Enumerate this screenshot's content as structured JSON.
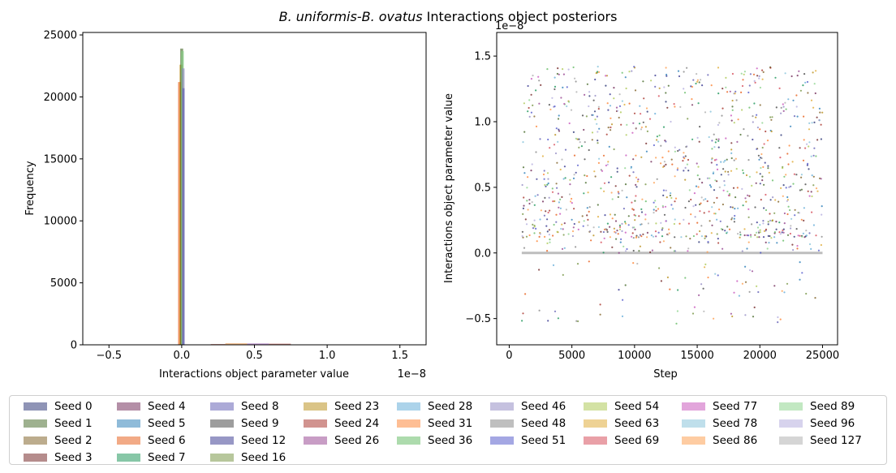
{
  "figure": {
    "title_italic": "B. uniformis-B. ovatus",
    "title_rest": " Interactions object posteriors"
  },
  "chart_data": [
    {
      "type": "histogram",
      "xlabel": "Interactions object parameter value",
      "ylabel": "Frequency",
      "x_offset_label": "1e−8",
      "xlim": [
        -0.68,
        1.68
      ],
      "ylim": [
        0,
        25200
      ],
      "x_units": "1e-8",
      "xticks": [
        -0.5,
        0.0,
        0.5,
        1.0,
        1.5
      ],
      "xtick_labels": [
        "−0.5",
        "0.0",
        "0.5",
        "1.0",
        "1.5"
      ],
      "yticks": [
        0,
        5000,
        10000,
        15000,
        20000,
        25000
      ],
      "ytick_labels": [
        "0",
        "5000",
        "10000",
        "15000",
        "20000",
        "25000"
      ],
      "spike_bars": [
        {
          "x0": -0.025,
          "x1": -0.005,
          "height": 21200,
          "series": "Seed 6"
        },
        {
          "x0": -0.015,
          "x1": 0.005,
          "height": 22600,
          "series": "Seed 23"
        },
        {
          "x0": -0.01,
          "x1": 0.01,
          "height": 23900,
          "series": "Seed 1"
        },
        {
          "x0": -0.005,
          "x1": 0.015,
          "height": 23700,
          "series": "Seed 89"
        },
        {
          "x0": 0.0,
          "x1": 0.02,
          "height": 22300,
          "series": "Seed 46"
        },
        {
          "x0": 0.005,
          "x1": 0.02,
          "height": 20700,
          "series": "Seed 8"
        }
      ],
      "tail_bars": [
        {
          "x0": 0.2,
          "x1": 0.3,
          "height": 60
        },
        {
          "x0": 0.3,
          "x1": 0.45,
          "height": 120
        },
        {
          "x0": 0.45,
          "x1": 0.6,
          "height": 110
        },
        {
          "x0": 0.6,
          "x1": 0.75,
          "height": 90
        },
        {
          "x0": 0.75,
          "x1": 0.95,
          "height": 30
        }
      ]
    },
    {
      "type": "scatter",
      "xlabel": "Step",
      "ylabel": "Interactions object parameter value",
      "y_offset_label": "1e−8",
      "xlim": [
        -1000,
        26200
      ],
      "ylim": [
        -0.7,
        1.68
      ],
      "y_units": "1e-8",
      "xticks": [
        0,
        5000,
        10000,
        15000,
        20000,
        25000
      ],
      "xtick_labels": [
        "0",
        "5000",
        "10000",
        "15000",
        "20000",
        "25000"
      ],
      "yticks": [
        -0.5,
        0.0,
        0.5,
        1.0,
        1.5
      ],
      "ytick_labels": [
        "−0.5",
        "0.0",
        "0.5",
        "1.0",
        "1.5"
      ],
      "step_range": [
        1000,
        25000
      ],
      "zero_band": {
        "y": 0.0,
        "color": "#bdbdbd"
      },
      "points_per_series": 36,
      "description_of_distribution": "posterior samples mostly between 0.1 and 1.4, occasional dips to -0.6, dense band at 0.0"
    }
  ],
  "legend": {
    "items": [
      {
        "label": "Seed 0",
        "color": "#1f2a6e"
      },
      {
        "label": "Seed 1",
        "color": "#3e6320"
      },
      {
        "label": "Seed 2",
        "color": "#7a5a1c"
      },
      {
        "label": "Seed 3",
        "color": "#6b1a1a"
      },
      {
        "label": "Seed 4",
        "color": "#6a1f4f"
      },
      {
        "label": "Seed 5",
        "color": "#1f77b4"
      },
      {
        "label": "Seed 6",
        "color": "#e6550d"
      },
      {
        "label": "Seed 7",
        "color": "#109050"
      },
      {
        "label": "Seed 8",
        "color": "#5a55b0"
      },
      {
        "label": "Seed 9",
        "color": "#3c3c3c"
      },
      {
        "label": "Seed 12",
        "color": "#2f2f8c"
      },
      {
        "label": "Seed 16",
        "color": "#6f8f3a"
      },
      {
        "label": "Seed 23",
        "color": "#b58a10"
      },
      {
        "label": "Seed 24",
        "color": "#a3281f"
      },
      {
        "label": "Seed 26",
        "color": "#923c8c"
      },
      {
        "label": "Seed 28",
        "color": "#5aa7d6"
      },
      {
        "label": "Seed 31",
        "color": "#fd7e2a"
      },
      {
        "label": "Seed 36",
        "color": "#5cb85c"
      },
      {
        "label": "Seed 46",
        "color": "#8c84c0"
      },
      {
        "label": "Seed 48",
        "color": "#7f7f7f"
      },
      {
        "label": "Seed 51",
        "color": "#4a50c8"
      },
      {
        "label": "Seed 54",
        "color": "#a7c64a"
      },
      {
        "label": "Seed 63",
        "color": "#dda52a"
      },
      {
        "label": "Seed 69",
        "color": "#d3414f"
      },
      {
        "label": "Seed 77",
        "color": "#c64bb8"
      },
      {
        "label": "Seed 78",
        "color": "#7fbfd8"
      },
      {
        "label": "Seed 86",
        "color": "#fd9a45"
      },
      {
        "label": "Seed 89",
        "color": "#85d185"
      },
      {
        "label": "Seed 96",
        "color": "#b0a8dc"
      },
      {
        "label": "Seed 127",
        "color": "#ababab"
      }
    ]
  }
}
